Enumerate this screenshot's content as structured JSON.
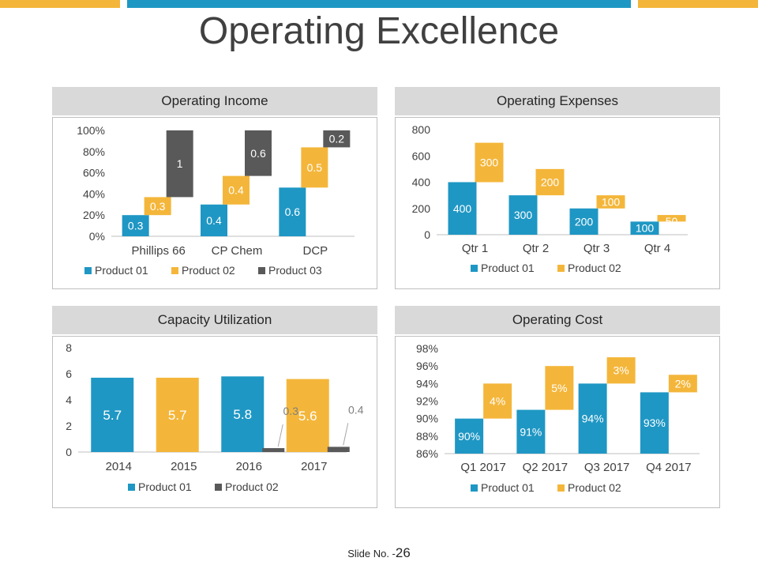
{
  "slide": {
    "title": "Operating Excellence",
    "slide_no_label": "Slide No. -",
    "slide_no_value": "26"
  },
  "colors": {
    "product01": "#1f97c4",
    "product02": "#f4b63a",
    "product03": "#595959",
    "accent_yellow": "#f4b63a",
    "accent_blue": "#1f97c4"
  },
  "panels": {
    "income": {
      "title": "Operating Income"
    },
    "expenses": {
      "title": "Operating Expenses"
    },
    "capacity": {
      "title": "Capacity Utilization"
    },
    "cost": {
      "title": "Operating Cost"
    }
  },
  "chart_data": [
    {
      "id": "income",
      "type": "bar",
      "title": "Operating Income",
      "categories": [
        "Phillips 66",
        "CP Chem",
        "DCP"
      ],
      "yticks": [
        "0%",
        "20%",
        "40%",
        "60%",
        "80%",
        "100%"
      ],
      "ylim": [
        0,
        100
      ],
      "series": [
        {
          "name": "Product 01",
          "labels": [
            "0.3",
            "0.4",
            "0.6"
          ],
          "bottom": [
            0,
            0,
            0
          ],
          "top": [
            20,
            30,
            46
          ]
        },
        {
          "name": "Product 02",
          "labels": [
            "0.3",
            "0.4",
            "0.5"
          ],
          "bottom": [
            20,
            30,
            46
          ],
          "top": [
            37,
            57,
            84
          ]
        },
        {
          "name": "Product 03",
          "labels": [
            "1",
            "0.6",
            "0.2"
          ],
          "bottom": [
            37,
            57,
            84
          ],
          "top": [
            100,
            100,
            100
          ]
        }
      ]
    },
    {
      "id": "expenses",
      "type": "bar",
      "title": "Operating Expenses",
      "categories": [
        "Qtr 1",
        "Qtr 2",
        "Qtr 3",
        "Qtr 4"
      ],
      "yticks": [
        "0",
        "200",
        "400",
        "600",
        "800"
      ],
      "ylim": [
        0,
        800
      ],
      "series": [
        {
          "name": "Product 01",
          "values": [
            400,
            300,
            200,
            100
          ],
          "labels": [
            "400",
            "300",
            "200",
            "100"
          ],
          "bottom": [
            0,
            0,
            0,
            0
          ],
          "top": [
            400,
            300,
            200,
            100
          ]
        },
        {
          "name": "Product 02",
          "values": [
            300,
            200,
            100,
            50
          ],
          "labels": [
            "300",
            "200",
            "100",
            "50"
          ],
          "bottom": [
            400,
            300,
            200,
            100
          ],
          "top": [
            700,
            500,
            300,
            150
          ]
        }
      ]
    },
    {
      "id": "capacity",
      "type": "bar",
      "title": "Capacity Utilization",
      "categories": [
        "2014",
        "2015",
        "2016",
        "2017"
      ],
      "yticks": [
        "0",
        "2",
        "4",
        "6",
        "8"
      ],
      "ylim": [
        0,
        8
      ],
      "series": [
        {
          "name": "Product 01",
          "values": [
            5.7,
            5.7,
            5.8,
            5.6
          ],
          "labels": [
            "5.7",
            "5.7",
            "5.8",
            "5.6"
          ]
        },
        {
          "name": "Product 02",
          "values": [
            null,
            null,
            0.3,
            0.4
          ],
          "labels": [
            "",
            "",
            "0.3",
            "0.4"
          ]
        }
      ]
    },
    {
      "id": "cost",
      "type": "bar",
      "title": "Operating Cost",
      "categories": [
        "Q1 2017",
        "Q2 2017",
        "Q3 2017",
        "Q4 2017"
      ],
      "yticks": [
        "86%",
        "88%",
        "90%",
        "92%",
        "94%",
        "96%",
        "98%"
      ],
      "ylim": [
        86,
        98
      ],
      "series": [
        {
          "name": "Product 01",
          "values": [
            90,
            91,
            94,
            93
          ],
          "labels": [
            "90%",
            "91%",
            "94%",
            "93%"
          ],
          "bottom": [
            86,
            86,
            86,
            86
          ],
          "top": [
            90,
            91,
            94,
            93
          ]
        },
        {
          "name": "Product 02",
          "values": [
            4,
            5,
            3,
            2
          ],
          "labels": [
            "4%",
            "5%",
            "3%",
            "2%"
          ],
          "bottom": [
            90,
            91,
            94,
            93
          ],
          "top": [
            94,
            96,
            97,
            95
          ]
        }
      ]
    }
  ]
}
